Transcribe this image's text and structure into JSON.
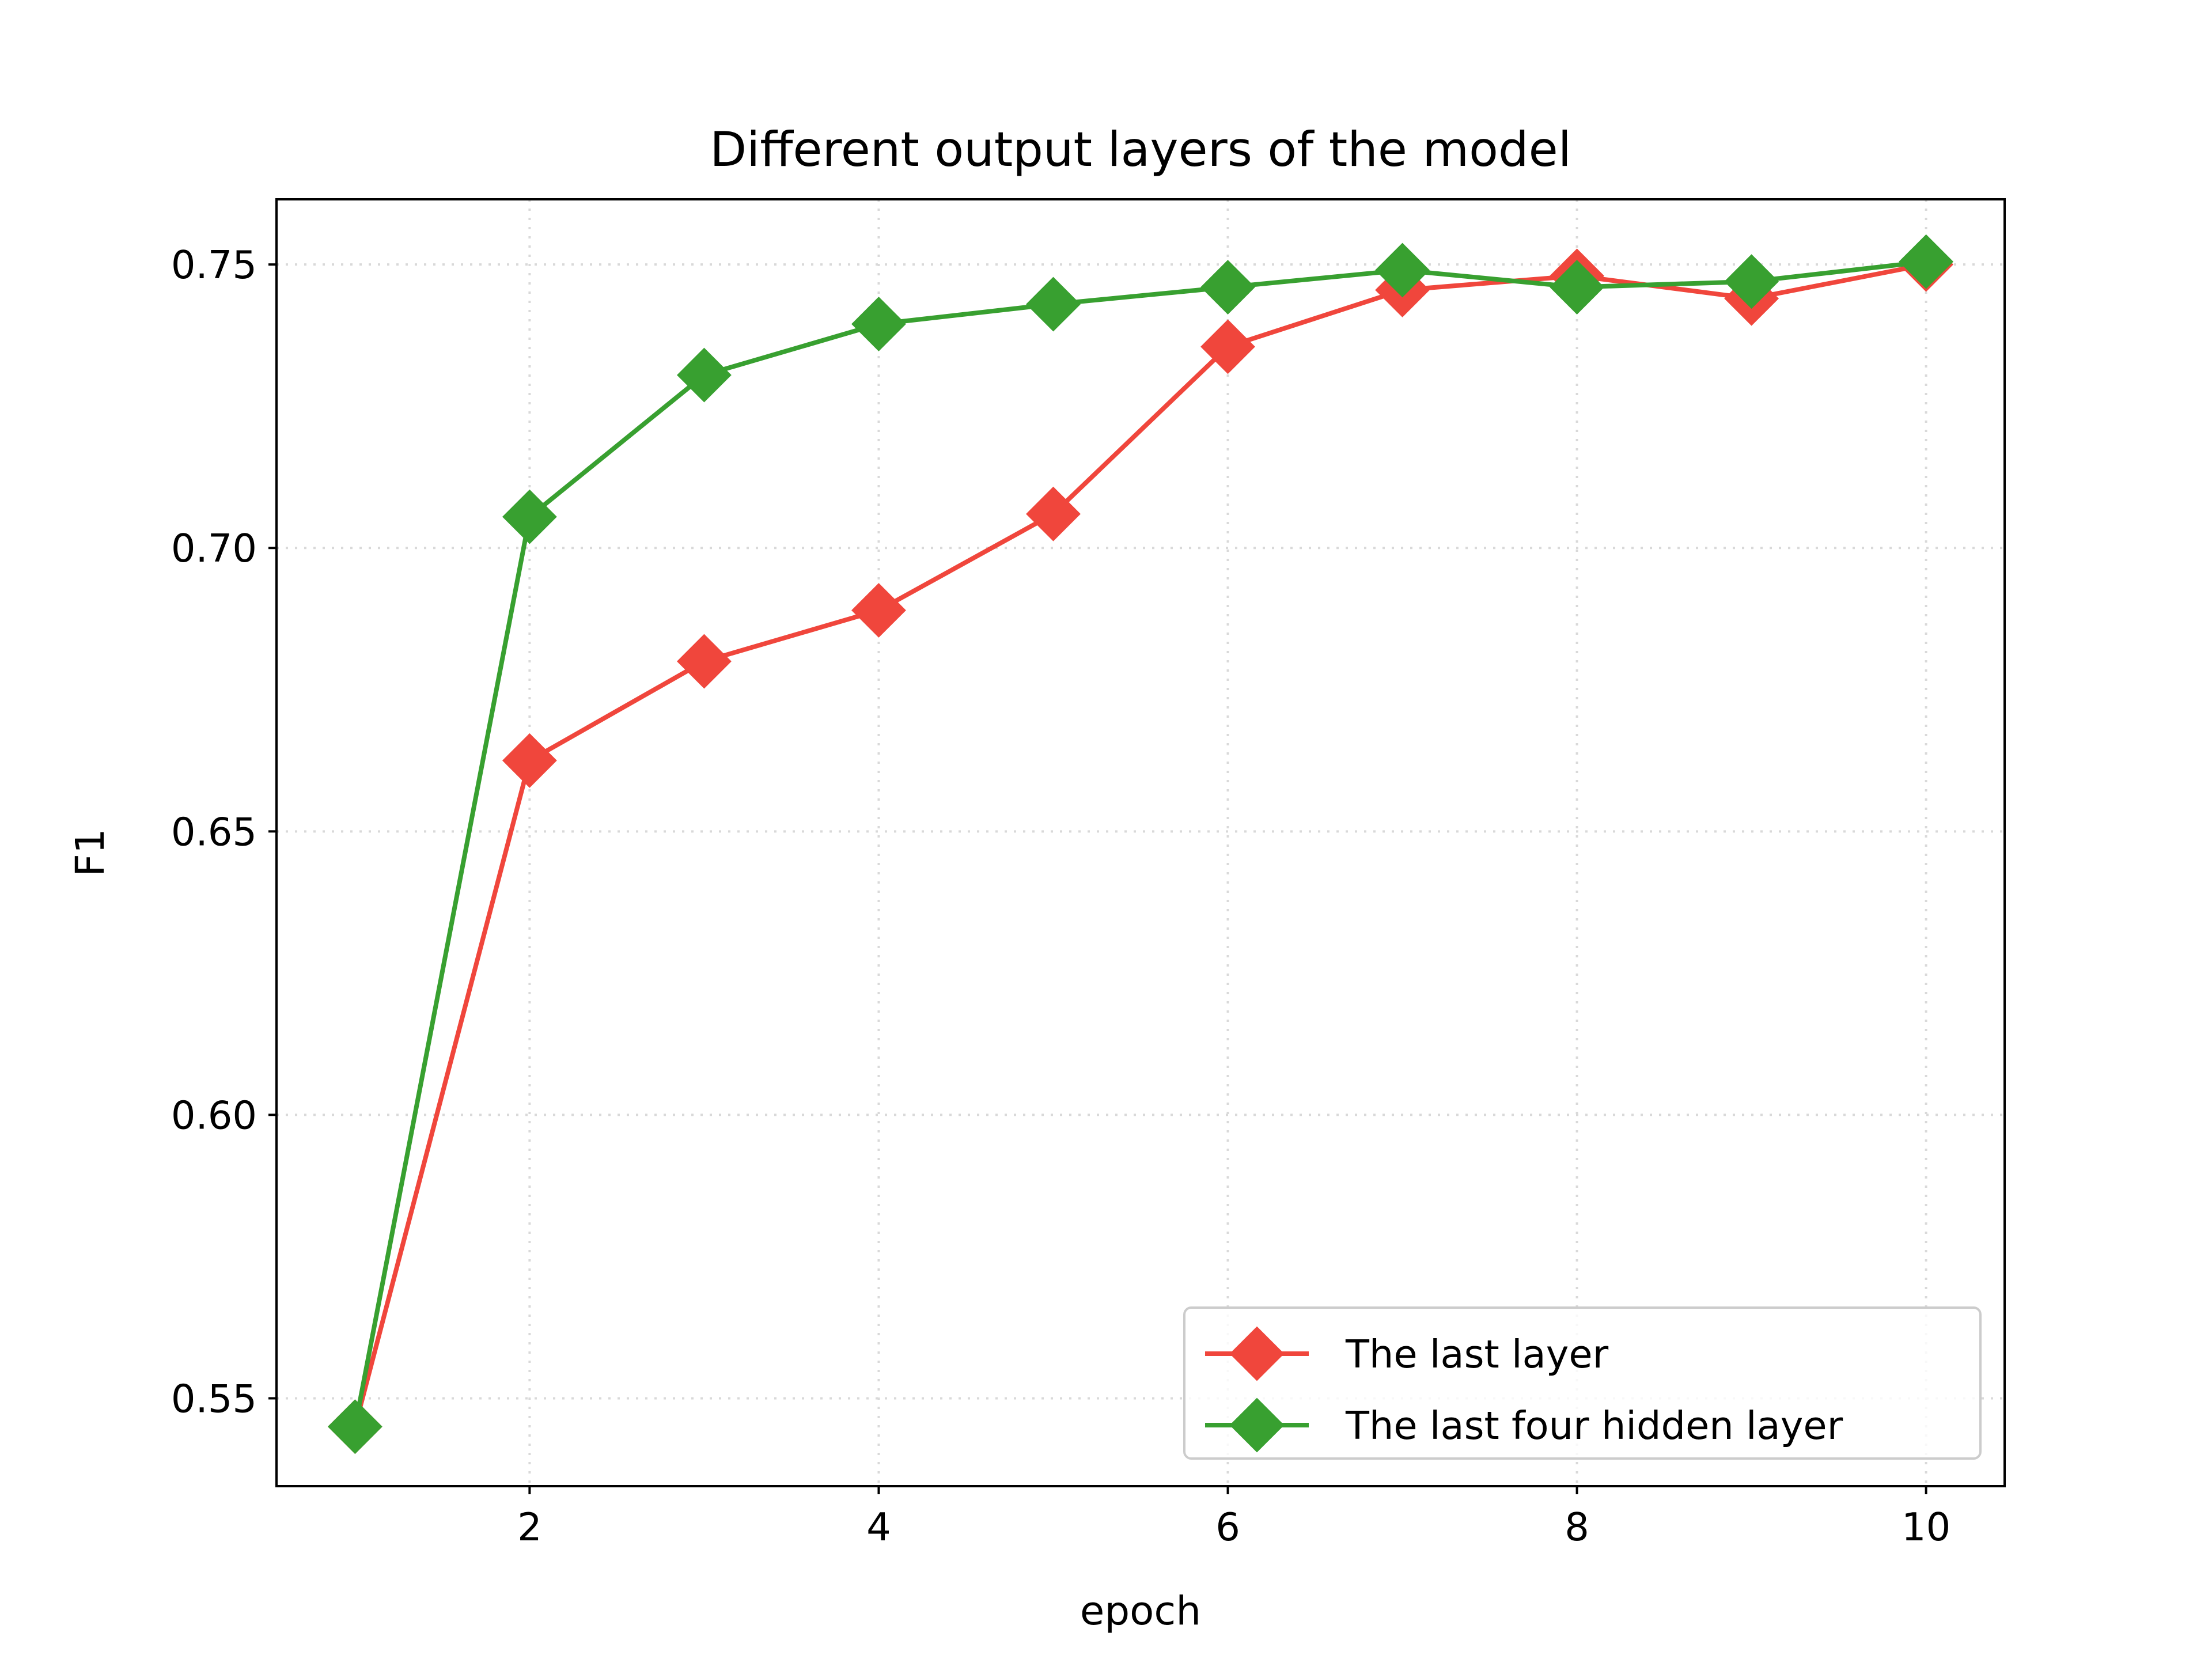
{
  "chart_data": {
    "type": "line",
    "title": "Different output layers of the model",
    "xlabel": "epoch",
    "ylabel": "F1",
    "xlim": [
      0.55,
      10.45
    ],
    "ylim": [
      0.5345,
      0.7615
    ],
    "xticks": [
      2,
      4,
      6,
      8,
      10
    ],
    "xtick_labels": [
      "2",
      "4",
      "6",
      "8",
      "10"
    ],
    "yticks": [
      0.55,
      0.6,
      0.65,
      0.7,
      0.75
    ],
    "ytick_labels": [
      "0.55",
      "0.60",
      "0.65",
      "0.70",
      "0.75"
    ],
    "grid": true,
    "legend_position": "lower-right",
    "x": [
      1,
      2,
      3,
      4,
      5,
      6,
      7,
      8,
      9,
      10
    ],
    "series": [
      {
        "name": "The last layer",
        "color": "#f0463c",
        "marker": "diamond",
        "values": [
          0.545,
          0.6625,
          0.68,
          0.689,
          0.706,
          0.7355,
          0.7455,
          0.748,
          0.744,
          0.75
        ]
      },
      {
        "name": "The last four hidden layer",
        "color": "#38a030",
        "marker": "diamond",
        "values": [
          0.545,
          0.7055,
          0.7305,
          0.7395,
          0.743,
          0.746,
          0.749,
          0.746,
          0.747,
          0.7505
        ]
      }
    ]
  }
}
